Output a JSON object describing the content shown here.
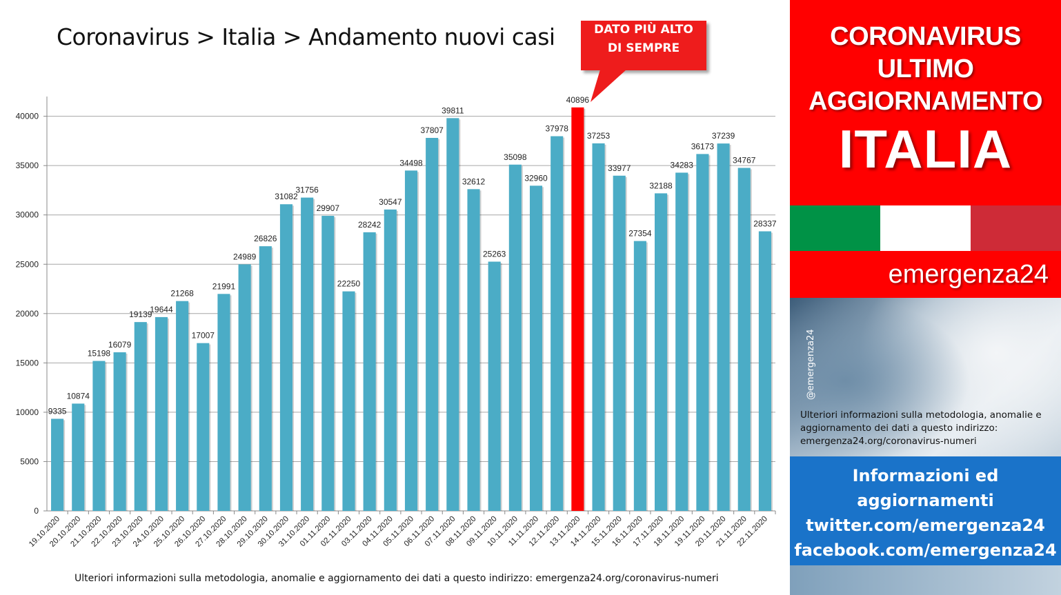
{
  "title": "Coronavirus > Italia > Andamento nuovi casi",
  "callout": {
    "line1": "DATO PIÙ ALTO",
    "line2": "DI SEMPRE"
  },
  "footnote": "Ulteriori informazioni sulla metodologia, anomalie e aggiornamento dei dati a questo indirizzo: emergenza24.org/coronavirus-numeri",
  "colors": {
    "bar": "#4bacc6",
    "highlight": "#ff0000",
    "panel_red": "#ff0000",
    "info_blue": "#1a73c9",
    "flag_green": "#009246",
    "flag_white": "#ffffff",
    "flag_red": "#ce2b37"
  },
  "panel": {
    "line1": "CORONAVIRUS",
    "line2": "ULTIMO",
    "line3": "AGGIORNAMENTO",
    "country": "ITALIA",
    "brand": "emergenza24",
    "handle": "@emergenza24",
    "note": "Ulteriori informazioni sulla metodologia, anomalie e aggiornamento dei dati a questo indirizzo: emergenza24.org/coronavirus-numeri",
    "info": [
      "Informazioni ed",
      "aggiornamenti",
      "twitter.com/emergenza24",
      "facebook.com/emergenza24"
    ]
  },
  "chart_data": {
    "type": "bar",
    "title": "Coronavirus > Italia > Andamento nuovi casi",
    "xlabel": "",
    "ylabel": "",
    "ylim": [
      0,
      42000
    ],
    "yticks": [
      0,
      5000,
      10000,
      15000,
      20000,
      25000,
      30000,
      35000,
      40000
    ],
    "grid": true,
    "highlight_category": "13.11.2020",
    "categories": [
      "19.10.2020",
      "20.10.2020",
      "21.10.2020",
      "22.10.2020",
      "23.10.2020",
      "24.10.2020",
      "25.10.2020",
      "26.10.2020",
      "27.10.2020",
      "28.10.2020",
      "29.10.2020",
      "30.10.2020",
      "31.10.2020",
      "01.11.2020",
      "02.11.2020",
      "03.11.2020",
      "04.11.2020",
      "05.11.2020",
      "06.11.2020",
      "07.11.2020",
      "08.11.2020",
      "09.11.2020",
      "10.11.2020",
      "11.11.2020",
      "12.11.2020",
      "13.11.2020",
      "14.11.2020",
      "15.11.2020",
      "16.11.2020",
      "17.11.2020",
      "18.11.2020",
      "19.11.2020",
      "20.11.2020",
      "21.11.2020",
      "22.11.2020"
    ],
    "values": [
      9335,
      10874,
      15198,
      16079,
      19139,
      19644,
      21268,
      17007,
      21991,
      24989,
      26826,
      31082,
      31756,
      29907,
      22250,
      28242,
      30547,
      34498,
      37807,
      39811,
      32612,
      25263,
      35098,
      32960,
      37978,
      40896,
      37253,
      33977,
      27354,
      32188,
      34283,
      36173,
      37239,
      34767,
      28337
    ]
  }
}
